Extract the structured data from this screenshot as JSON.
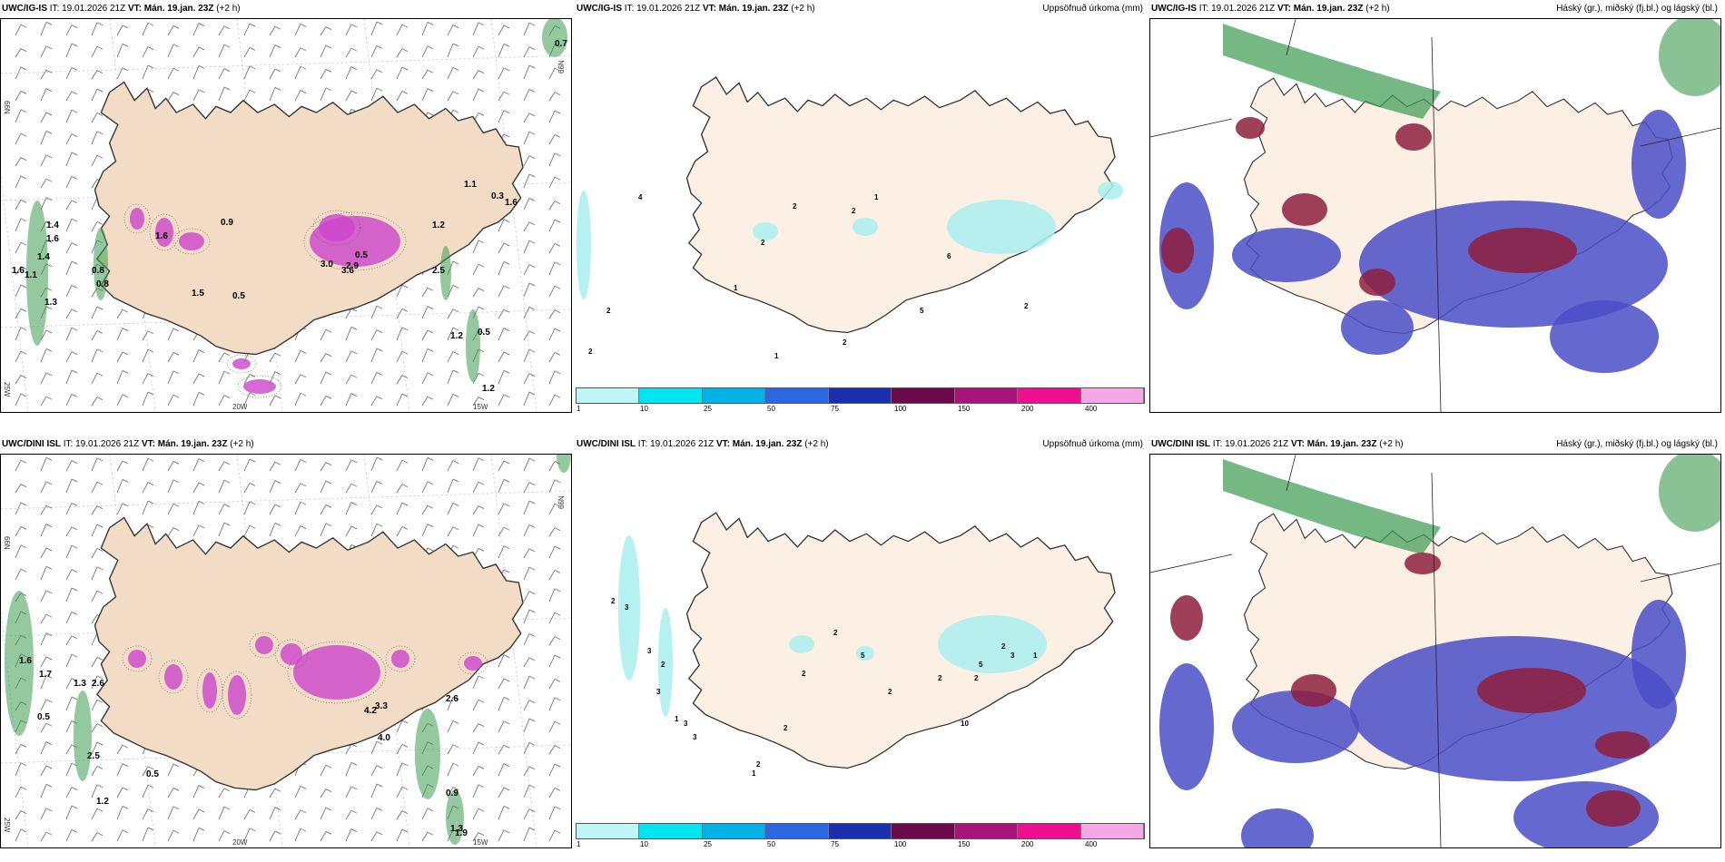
{
  "rows": [
    {
      "model": "UWC/IG-IS",
      "it_label": "IT:",
      "it_time": "19.01.2026 21Z",
      "vt_label": "VT:",
      "vt_time": "Mán. 19.jan. 23Z",
      "lead": "(+2 h)",
      "precip_values": [
        "0.7",
        "1.4",
        "1.6",
        "1.4",
        "1.6",
        "1.1",
        "1.3",
        "1.6",
        "0.8",
        "0.8",
        "0.9",
        "1.5",
        "0.5",
        "3.6",
        "3.0",
        "2.9",
        "1.2",
        "2.5",
        "1.2",
        "0.5",
        "1.2",
        "1.1",
        "1.6",
        "0.5",
        "0.3"
      ],
      "accum_values": [
        "4",
        "2",
        "2",
        "1",
        "2",
        "1",
        "2",
        "2",
        "6",
        "2",
        "1",
        "2",
        "5"
      ]
    },
    {
      "model": "UWC/DINI ISL",
      "it_label": "IT:",
      "it_time": "19.01.2026 21Z",
      "vt_label": "VT:",
      "vt_time": "Mán. 19.jan. 23Z",
      "lead": "(+2 h)",
      "precip_values": [
        "1.6",
        "1.7",
        "1.3",
        "2.6",
        "0.5",
        "2.5",
        "0.5",
        "1.2",
        "3.3",
        "4.2",
        "4.0",
        "2.6",
        "0.9",
        "1.3",
        "1.9"
      ],
      "accum_values": [
        "2",
        "3",
        "3",
        "2",
        "3",
        "1",
        "2",
        "5",
        "2",
        "2",
        "1",
        "2",
        "2",
        "10",
        "2",
        "5",
        "1",
        "2",
        "2",
        "3",
        "3",
        "3"
      ]
    }
  ],
  "accum_title": "Uppsöfnuð úrkoma (mm)",
  "cloud_title": "Háský (gr.), miðský (fj.bl.) og lágský (bl.)",
  "axis_labels": {
    "lat": "66N",
    "lat2": "64N",
    "lon1": "20W",
    "lon2": "15W",
    "lon3": "25W"
  },
  "colorbar": {
    "ticks": [
      "1",
      "10",
      "25",
      "50",
      "75",
      "100",
      "150",
      "200",
      "400"
    ],
    "colors": [
      "#bff7f7",
      "#00e5ee",
      "#00b2e6",
      "#2a67e0",
      "#1a2fb0",
      "#6a0a4a",
      "#a8137a",
      "#ee0f8f",
      "#f5a7e8"
    ]
  },
  "colors": {
    "land": "#f2dcc6",
    "land_pale": "#fcefe3",
    "magenta": "#cc44cc",
    "green": "#3c9a50",
    "cyan": "#a9eef0",
    "blue": "#4a4dc7",
    "maroon": "#8e1f3e"
  }
}
